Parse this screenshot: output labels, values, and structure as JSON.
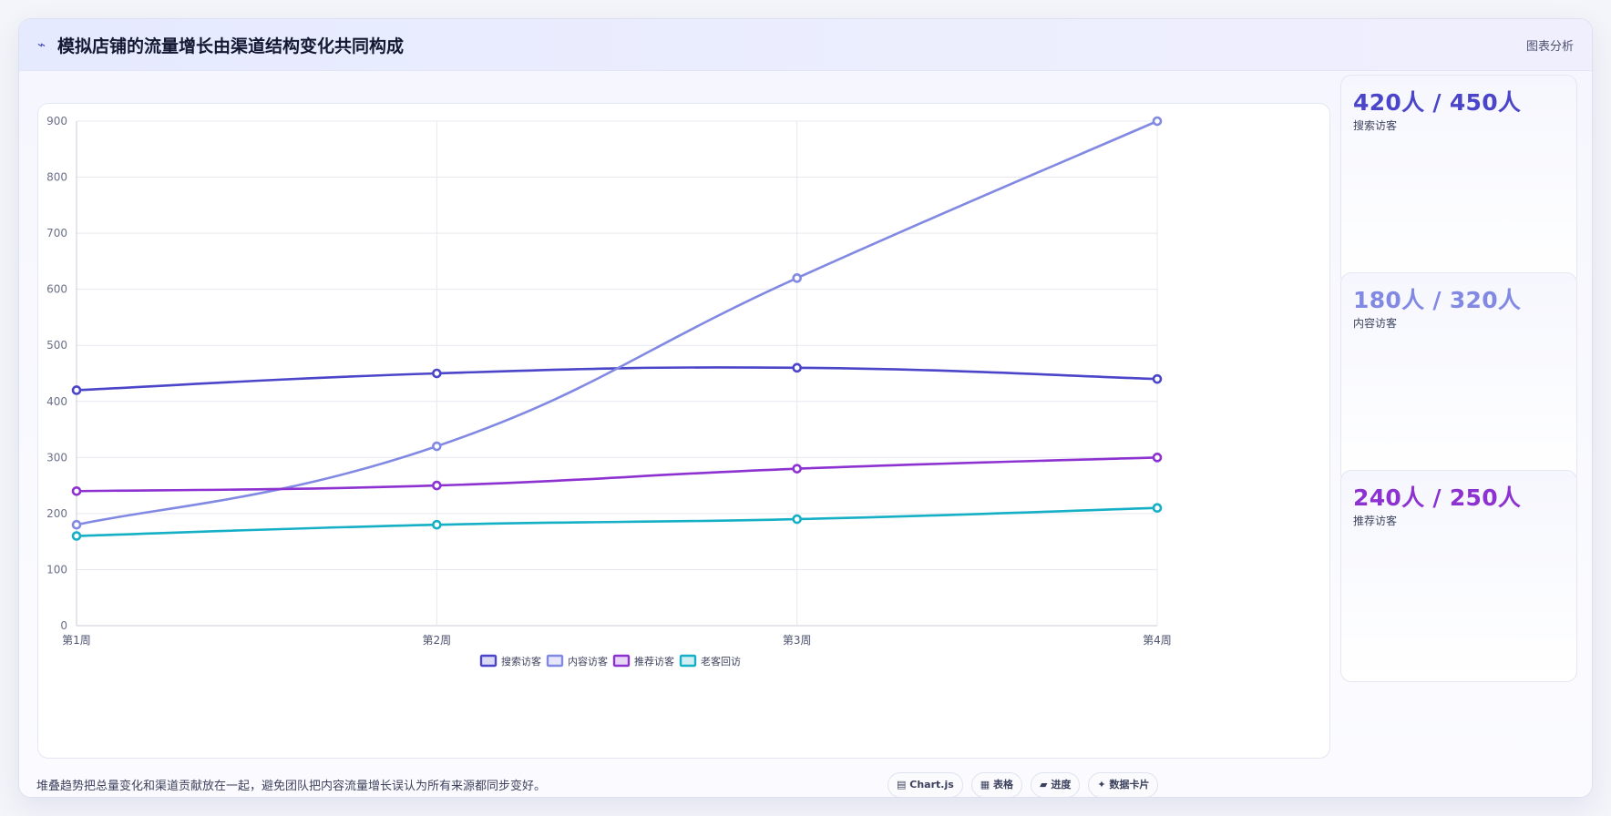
{
  "header": {
    "icon": "pulse-icon",
    "title": "模拟店铺的流量增长由渠道结构变化共同构成",
    "right_label": "图表分析"
  },
  "colors": {
    "search": "#4b45c9",
    "content": "#8289e3",
    "recommend": "#8d32d1",
    "returning": "#15afc6"
  },
  "chart_data": {
    "type": "line",
    "categories": [
      "第1周",
      "第2周",
      "第3周",
      "第4周"
    ],
    "series": [
      {
        "name": "搜索访客",
        "values": [
          420,
          450,
          460,
          440
        ]
      },
      {
        "name": "内容访客",
        "values": [
          180,
          320,
          620,
          900
        ]
      },
      {
        "name": "推荐访客",
        "values": [
          240,
          250,
          280,
          300
        ]
      },
      {
        "name": "老客回访",
        "values": [
          160,
          180,
          190,
          210
        ]
      }
    ],
    "ylim": [
      0,
      900
    ],
    "yticks": [
      0,
      100,
      200,
      300,
      400,
      500,
      600,
      700,
      800,
      900
    ],
    "grid": true,
    "legend": "bottom"
  },
  "cards": [
    {
      "value": "420人 / 450人",
      "label": "搜索访客"
    },
    {
      "value": "180人 / 320人",
      "label": "内容访客"
    },
    {
      "value": "240人 / 250人",
      "label": "推荐访客"
    }
  ],
  "footer": {
    "note": "堆叠趋势把总量变化和渠道贡献放在一起，避免团队把内容流量增长误认为所有来源都同步变好。",
    "tags": [
      {
        "icon": "chart-icon",
        "glyph": "▤",
        "label": "Chart.js"
      },
      {
        "icon": "table-icon",
        "glyph": "▦",
        "label": "表格"
      },
      {
        "icon": "progress-icon",
        "glyph": "▰",
        "label": "进度"
      },
      {
        "icon": "sparkle-icon",
        "glyph": "✦",
        "label": "数据卡片"
      }
    ]
  }
}
